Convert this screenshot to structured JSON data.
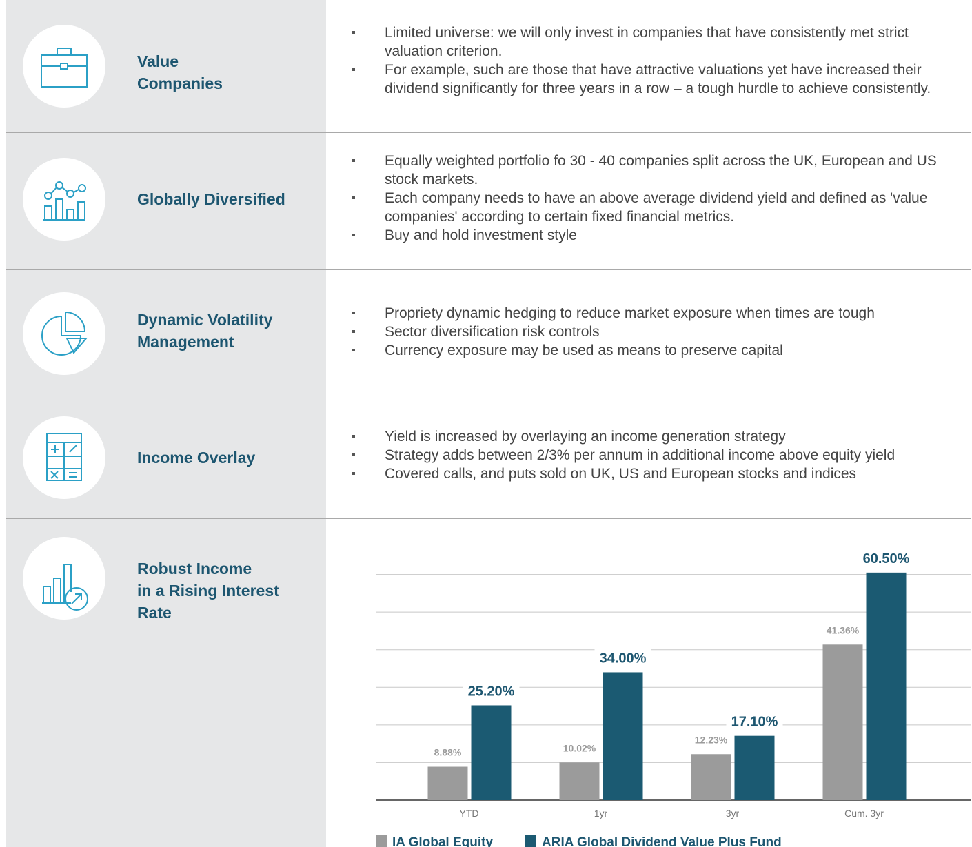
{
  "rows": [
    {
      "title_lines": [
        "Value",
        "Companies"
      ],
      "bullets": [
        "Limited universe: we will only invest in companies that have consistently met strict valuation criterion.",
        "For example, such are those that have attractive valuations yet have increased their dividend significantly for three years in a row – a tough hurdle to achieve consistently."
      ]
    },
    {
      "title_lines": [
        "Globally Diversified"
      ],
      "bullets": [
        "Equally weighted portfolio fo 30 - 40 companies split across the UK, European and US stock markets.",
        "Each company needs to have an above average dividend yield and defined as 'value companies' according to certain fixed financial metrics.",
        "Buy and hold investment style"
      ]
    },
    {
      "title_lines": [
        "Dynamic Volatility",
        "Management"
      ],
      "bullets": [
        "Propriety dynamic hedging to reduce market exposure when times are tough",
        "Sector diversification risk controls",
        "Currency exposure may be used as means to preserve capital"
      ]
    },
    {
      "title_lines": [
        "Income Overlay"
      ],
      "bullets": [
        "Yield is increased by overlaying an income generation strategy",
        "Strategy adds between 2/3% per annum in additional income above equity yield",
        "Covered calls, and puts sold on UK, US and European stocks and indices"
      ]
    },
    {
      "title_lines": [
        "Robust Income",
        "in a Rising Interest",
        "Rate"
      ],
      "bullets": []
    }
  ],
  "chart_data": {
    "type": "bar",
    "categories": [
      "YTD",
      "1yr",
      "3yr",
      "Cum. 3yr"
    ],
    "series": [
      {
        "name": "IA Global Equity",
        "color": "#9b9b9b",
        "values": [
          8.88,
          10.02,
          12.23,
          41.36
        ],
        "value_labels": [
          "8.88%",
          "10.02%",
          "12.23%",
          "41.36%"
        ]
      },
      {
        "name": "ARIA Global Dividend Value Plus Fund",
        "color": "#1b5a72",
        "values": [
          25.2,
          34.0,
          17.1,
          60.5
        ],
        "value_labels": [
          "25.20%",
          "34.00%",
          "17.10%",
          "60.50%"
        ]
      }
    ],
    "ylim": [
      0,
      70
    ],
    "yticks": [
      10,
      20,
      30,
      40,
      50,
      60
    ],
    "grid": true
  }
}
